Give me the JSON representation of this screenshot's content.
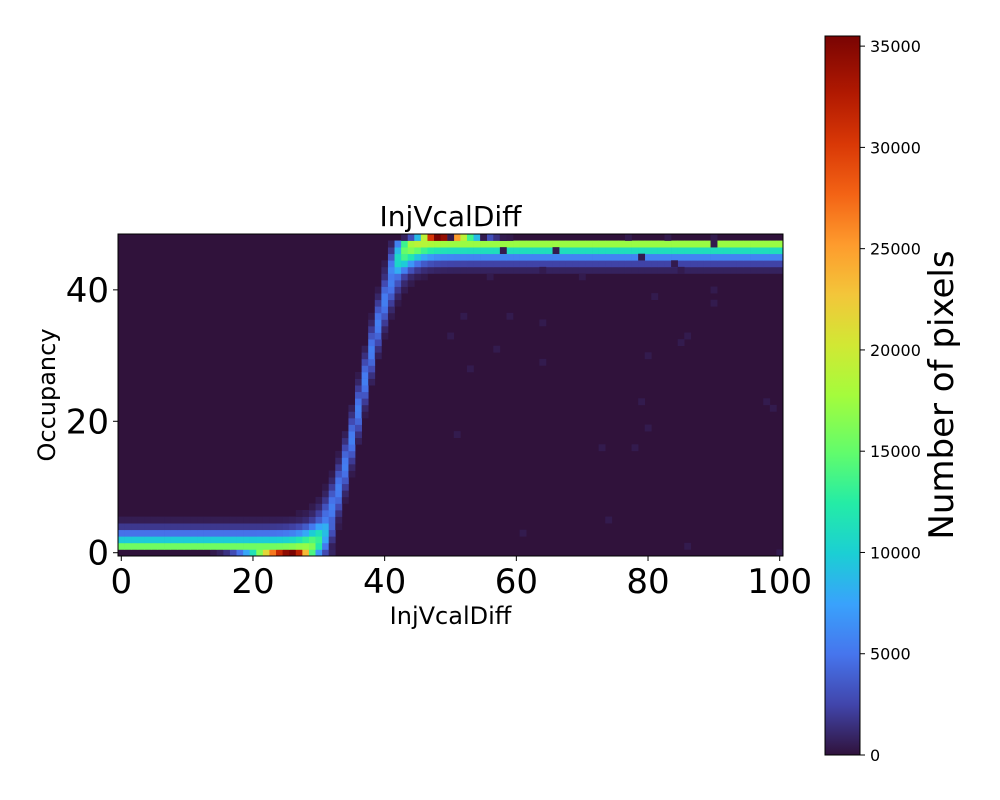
{
  "chart_data": {
    "type": "heatmap",
    "title": "InjVcalDiff",
    "xlabel": "InjVcalDiff",
    "ylabel": "Occupancy",
    "xlim": [
      -0.5,
      100.5
    ],
    "ylim": [
      -0.5,
      48.5
    ],
    "x_ticks": [
      0,
      20,
      40,
      60,
      80,
      100
    ],
    "y_ticks": [
      0,
      20,
      40
    ],
    "colorbar": {
      "label": "Number of pixels",
      "min": 0,
      "max": 35500,
      "ticks": [
        0,
        5000,
        10000,
        15000,
        20000,
        25000,
        30000,
        35000
      ],
      "colormap": "turbo"
    },
    "background_value": 0,
    "s_curve": {
      "mean_injvcaldiff": 36.5,
      "spread": 4.2,
      "min_occupancy": 0,
      "max_occupancy": 48
    },
    "peaks": [
      {
        "occupancy": 0,
        "injvcaldiff_range": [
          10,
          33
        ],
        "peak_at": 26,
        "peak_value": 35500
      },
      {
        "occupancy": 48,
        "injvcaldiff_range": [
          42,
          60
        ],
        "peak_at": 48,
        "peak_value": 35500
      }
    ],
    "outlier_points": [
      [
        50,
        48
      ],
      [
        55,
        48
      ],
      [
        58,
        48
      ],
      [
        77,
        48
      ],
      [
        83,
        48
      ],
      [
        90,
        48
      ],
      [
        90,
        47
      ],
      [
        58,
        46
      ],
      [
        66,
        46
      ],
      [
        79,
        45
      ],
      [
        84,
        44
      ],
      [
        64,
        43
      ],
      [
        85,
        43
      ],
      [
        56,
        42
      ],
      [
        70,
        42
      ],
      [
        81,
        39
      ],
      [
        90,
        40
      ],
      [
        90,
        38
      ],
      [
        52,
        36
      ],
      [
        59,
        36
      ],
      [
        64,
        35
      ],
      [
        50,
        33
      ],
      [
        86,
        33
      ],
      [
        85,
        32
      ],
      [
        57,
        31
      ],
      [
        80,
        30
      ],
      [
        64,
        29
      ],
      [
        53,
        28
      ],
      [
        79,
        23
      ],
      [
        98,
        23
      ],
      [
        99,
        22
      ],
      [
        80,
        19
      ],
      [
        51,
        18
      ],
      [
        73,
        16
      ],
      [
        78,
        16
      ],
      [
        74,
        5
      ],
      [
        61,
        3
      ],
      [
        86,
        1
      ],
      [
        100,
        0
      ]
    ]
  }
}
